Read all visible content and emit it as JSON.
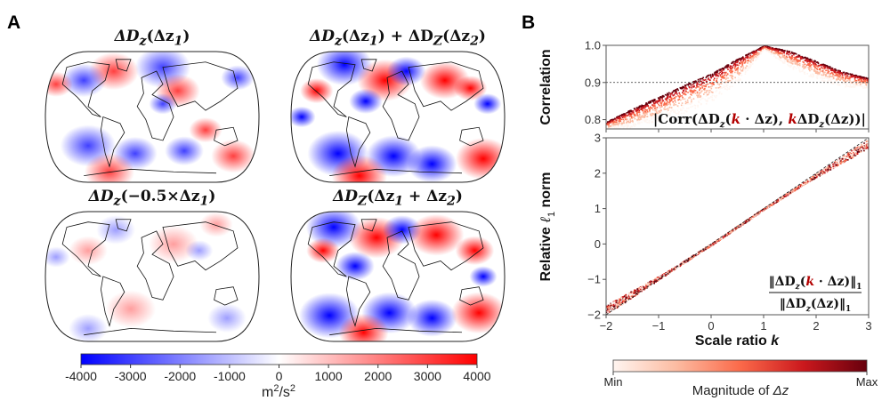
{
  "panels": {
    "a_label": "A",
    "b_label": "B"
  },
  "maps": [
    {
      "id": "map-dz1",
      "title_main": "ΔD",
      "title_sub": "z",
      "title_arg": "(Δz",
      "title_arg_sub": "1",
      "title_tail": ")",
      "intensity": 0.75
    },
    {
      "id": "map-sum-separate",
      "title_main": "ΔD",
      "title_sub": "z",
      "title_arg": "(Δz",
      "title_arg_sub": "1",
      "title_tail": ") + ΔD",
      "title_sub2": "Z",
      "title_arg2": "(Δz",
      "title_arg_sub2": "2",
      "title_tail2": ")",
      "intensity": 1.0
    },
    {
      "id": "map-neg-half-dz1",
      "title_main": "ΔD",
      "title_sub": "z",
      "title_arg": "(−0.5×Δz",
      "title_arg_sub": "1",
      "title_tail": ")",
      "intensity": 0.38
    },
    {
      "id": "map-dz1-plus-dz2",
      "title_main": "ΔD",
      "title_sub": "Z",
      "title_arg": "(Δz",
      "title_arg_sub": "1",
      "title_tail": " + Δz",
      "title_arg_sub2": "2",
      "title_tail2": ")",
      "intensity": 1.0
    }
  ],
  "map_colorbar": {
    "ticks": [
      "-4000",
      "-3000",
      "-2000",
      "-1000",
      "0",
      "1000",
      "2000",
      "3000",
      "4000"
    ],
    "range": [
      -4000,
      4000
    ],
    "unit_base": "m",
    "unit_exp": "2",
    "unit_mid": "/s",
    "unit_exp2": "2",
    "colors": [
      "#0000ff",
      "#ffffff",
      "#ff0000"
    ]
  },
  "chart_data": [
    {
      "type": "scatter",
      "title": "",
      "ylabel": "Correlation",
      "xlabel": "",
      "xlim": [
        -2,
        3
      ],
      "ylim": [
        0.775,
        1.0
      ],
      "yticks": [
        "0.8",
        "0.9",
        "1.0"
      ],
      "ytick_values": [
        0.8,
        0.9,
        1.0
      ],
      "xtick_values": [
        -2,
        -1,
        0,
        1,
        2,
        3
      ],
      "reference_line": {
        "y": 0.9,
        "style": "dotted"
      },
      "annotation": "|Corr(ΔDz(k · Δz), kΔDz(Δz))|",
      "annotation_parts": {
        "open": "|Corr(ΔD",
        "sub1": "z",
        "mid1": "(",
        "k1": "k",
        "mid2": " · Δz), ",
        "k2": "k",
        "mid3": "ΔD",
        "sub2": "z",
        "close": "(Δz))|"
      },
      "envelope_upper": {
        "x": [
          -2,
          -1.5,
          -1,
          -0.5,
          0,
          0.5,
          1,
          1.5,
          2,
          2.5,
          3
        ],
        "y": [
          0.795,
          0.83,
          0.862,
          0.895,
          0.925,
          0.965,
          1.0,
          0.985,
          0.958,
          0.93,
          0.912
        ]
      },
      "envelope_lower": {
        "x": [
          -2,
          -1.5,
          -1,
          -0.5,
          0,
          0.5,
          1,
          1.5,
          2,
          2.5,
          3
        ],
        "y": [
          0.775,
          0.78,
          0.8,
          0.82,
          0.85,
          0.9,
          0.99,
          0.94,
          0.91,
          0.89,
          0.885
        ]
      }
    },
    {
      "type": "scatter",
      "title": "",
      "ylabel": "Relative ℓ1 norm",
      "ylabel_parts": {
        "pre": "Relative ",
        "ell": "ℓ",
        "sub": "1",
        "post": " norm"
      },
      "xlabel": "Scale ratio k",
      "xlabel_parts": {
        "pre": "Scale ratio ",
        "k": "k"
      },
      "xlim": [
        -2,
        3
      ],
      "ylim": [
        -2,
        3
      ],
      "xticks": [
        "−2",
        "−1",
        "0",
        "1",
        "2",
        "3"
      ],
      "xtick_values": [
        -2,
        -1,
        0,
        1,
        2,
        3
      ],
      "yticks": [
        "−2",
        "−1",
        "0",
        "1",
        "2",
        "3"
      ],
      "ytick_values": [
        -2,
        -1,
        0,
        1,
        2,
        3
      ],
      "reference_line": {
        "x": [
          -2,
          3
        ],
        "y": [
          -2,
          3
        ],
        "style": "dashed"
      },
      "annotation_numerator": {
        "pre": "‖ΔD",
        "sub": "z",
        "open": "(",
        "k": "k",
        "post": " · Δz)‖",
        "sub2": "1"
      },
      "annotation_denominator": {
        "pre": "‖ΔD",
        "sub": "z",
        "post": "(Δz)‖",
        "sub2": "1"
      },
      "trend": {
        "x": [
          -2,
          -1,
          0,
          1,
          2,
          3
        ],
        "y": [
          -1.85,
          -0.95,
          0.0,
          1.0,
          1.95,
          2.85
        ]
      }
    }
  ],
  "magnitude_colorbar": {
    "min_label": "Min",
    "max_label": "Max",
    "title_pre": "Magnitude of ",
    "title_var": "Δz",
    "colors": [
      "#fff5f0",
      "#fcbba1",
      "#fb6a4a",
      "#cb181d",
      "#67000d"
    ]
  }
}
